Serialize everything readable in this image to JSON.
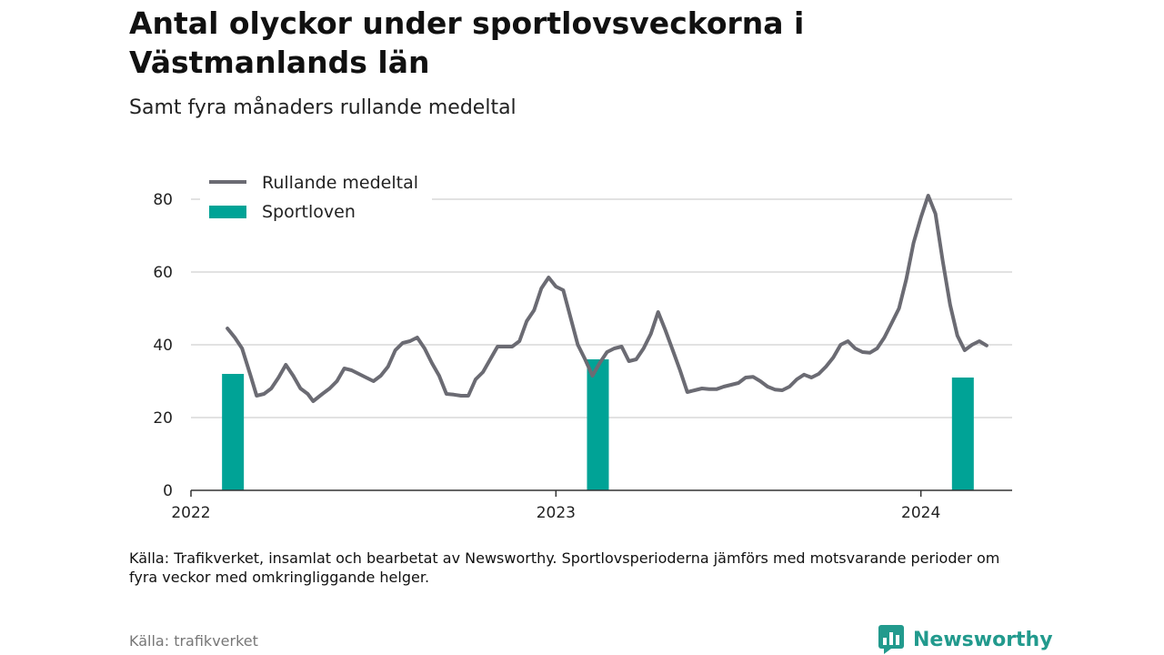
{
  "title": "Antal olyckor under sportlovsveckorna i Västmanlands län",
  "subtitle": "Samt fyra månaders rullande medeltal",
  "note": "Källa: Trafikverket, insamlat och bearbetat av Newsworthy. Sportlovsperioderna jämförs med motsvarande perioder om fyra veckor med omkringliggande helger.",
  "source": "Källa: trafikverket",
  "brand": {
    "name": "Newsworthy",
    "icon": "newsworthy-logo-icon",
    "color": "#229a8d"
  },
  "chart_data": {
    "type": "line",
    "title": "Antal olyckor under sportlovsveckorna i Västmanlands län",
    "subtitle": "Samt fyra månaders rullande medeltal",
    "xlabel": "",
    "ylabel": "",
    "xlim": [
      2022.0,
      2024.25
    ],
    "ylim": [
      0,
      80
    ],
    "yticks": [
      0,
      20,
      40,
      60,
      80
    ],
    "xticks": [
      {
        "value": 2022,
        "label": "2022"
      },
      {
        "value": 2023,
        "label": "2023"
      },
      {
        "value": 2024,
        "label": "2024"
      }
    ],
    "grid": true,
    "legend_position": "top-left",
    "series": [
      {
        "name": "Rullande medeltal",
        "kind": "line",
        "color": "#6b6b73",
        "points": [
          [
            2022.1,
            44.5
          ],
          [
            2022.12,
            42
          ],
          [
            2022.14,
            39
          ],
          [
            2022.165,
            31
          ],
          [
            2022.18,
            26
          ],
          [
            2022.2,
            26.5
          ],
          [
            2022.22,
            28
          ],
          [
            2022.24,
            31
          ],
          [
            2022.26,
            34.5
          ],
          [
            2022.28,
            31.5
          ],
          [
            2022.3,
            28
          ],
          [
            2022.32,
            26.5
          ],
          [
            2022.335,
            24.5
          ],
          [
            2022.36,
            26.5
          ],
          [
            2022.38,
            28
          ],
          [
            2022.4,
            30
          ],
          [
            2022.42,
            33.5
          ],
          [
            2022.44,
            33
          ],
          [
            2022.46,
            32
          ],
          [
            2022.48,
            31
          ],
          [
            2022.5,
            30
          ],
          [
            2022.52,
            31.5
          ],
          [
            2022.54,
            34
          ],
          [
            2022.56,
            38.5
          ],
          [
            2022.58,
            40.5
          ],
          [
            2022.6,
            41
          ],
          [
            2022.62,
            42
          ],
          [
            2022.64,
            39
          ],
          [
            2022.66,
            35
          ],
          [
            2022.68,
            31.5
          ],
          [
            2022.7,
            26.5
          ],
          [
            2022.72,
            26.3
          ],
          [
            2022.74,
            26
          ],
          [
            2022.76,
            26
          ],
          [
            2022.78,
            30.5
          ],
          [
            2022.8,
            32.5
          ],
          [
            2022.82,
            36
          ],
          [
            2022.84,
            39.5
          ],
          [
            2022.86,
            39.5
          ],
          [
            2022.88,
            39.5
          ],
          [
            2022.9,
            41
          ],
          [
            2022.92,
            46.5
          ],
          [
            2022.94,
            49.5
          ],
          [
            2022.96,
            55.5
          ],
          [
            2022.98,
            58.5
          ],
          [
            2023.0,
            56
          ],
          [
            2023.02,
            55
          ],
          [
            2023.04,
            47.5
          ],
          [
            2023.06,
            40
          ],
          [
            2023.08,
            36
          ],
          [
            2023.1,
            31.5
          ],
          [
            2023.12,
            35
          ],
          [
            2023.14,
            38
          ],
          [
            2023.16,
            39
          ],
          [
            2023.18,
            39.5
          ],
          [
            2023.2,
            35.5
          ],
          [
            2023.22,
            36
          ],
          [
            2023.24,
            39
          ],
          [
            2023.26,
            43
          ],
          [
            2023.28,
            49
          ],
          [
            2023.3,
            44
          ],
          [
            2023.32,
            38.5
          ],
          [
            2023.34,
            33
          ],
          [
            2023.36,
            27
          ],
          [
            2023.38,
            27.5
          ],
          [
            2023.4,
            28
          ],
          [
            2023.42,
            27.8
          ],
          [
            2023.44,
            27.8
          ],
          [
            2023.46,
            28.5
          ],
          [
            2023.48,
            29
          ],
          [
            2023.5,
            29.5
          ],
          [
            2023.52,
            31
          ],
          [
            2023.54,
            31.2
          ],
          [
            2023.56,
            30
          ],
          [
            2023.58,
            28.5
          ],
          [
            2023.6,
            27.7
          ],
          [
            2023.62,
            27.5
          ],
          [
            2023.64,
            28.5
          ],
          [
            2023.66,
            30.5
          ],
          [
            2023.68,
            31.8
          ],
          [
            2023.7,
            31
          ],
          [
            2023.72,
            32
          ],
          [
            2023.74,
            34
          ],
          [
            2023.76,
            36.5
          ],
          [
            2023.78,
            40
          ],
          [
            2023.8,
            41
          ],
          [
            2023.82,
            39
          ],
          [
            2023.84,
            38
          ],
          [
            2023.86,
            37.8
          ],
          [
            2023.88,
            39
          ],
          [
            2023.9,
            42
          ],
          [
            2023.92,
            46
          ],
          [
            2023.94,
            50
          ],
          [
            2023.96,
            58
          ],
          [
            2023.98,
            68
          ],
          [
            2024.0,
            75
          ],
          [
            2024.02,
            81
          ],
          [
            2024.04,
            76
          ],
          [
            2024.06,
            63
          ],
          [
            2024.08,
            51
          ],
          [
            2024.1,
            42.5
          ],
          [
            2024.12,
            38.5
          ],
          [
            2024.14,
            40
          ],
          [
            2024.16,
            41
          ],
          [
            2024.18,
            39.8
          ]
        ]
      },
      {
        "name": "Sportloven",
        "kind": "bar",
        "color": "#00a396",
        "bars": [
          {
            "x": 2022.115,
            "value": 32
          },
          {
            "x": 2023.115,
            "value": 36
          },
          {
            "x": 2024.115,
            "value": 31
          }
        ]
      }
    ]
  }
}
